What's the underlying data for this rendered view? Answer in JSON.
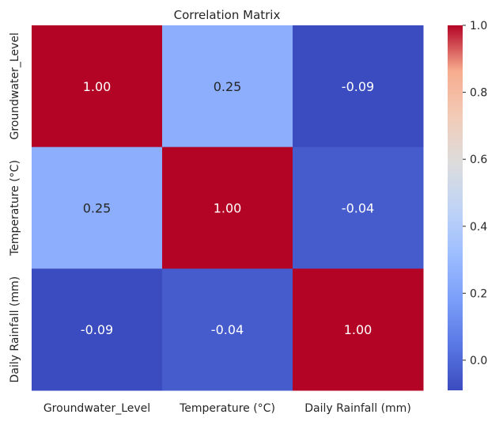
{
  "chart_data": {
    "type": "heatmap",
    "title": "Correlation Matrix",
    "x_categories": [
      "Groundwater_Level",
      "Temperature (°C)",
      "Daily Rainfall (mm)"
    ],
    "y_categories": [
      "Groundwater_Level",
      "Temperature (°C)",
      "Daily Rainfall (mm)"
    ],
    "values": [
      [
        1.0,
        0.25,
        -0.09
      ],
      [
        0.25,
        1.0,
        -0.04
      ],
      [
        -0.09,
        -0.04,
        1.0
      ]
    ],
    "value_labels": [
      [
        "1.00",
        "0.25",
        "-0.09"
      ],
      [
        "0.25",
        "1.00",
        "-0.04"
      ],
      [
        "-0.09",
        "-0.04",
        "1.00"
      ]
    ],
    "colormap": "coolwarm",
    "colorbar": {
      "vmin": -0.09,
      "vmax": 1.0,
      "ticks": [
        0.0,
        0.2,
        0.4,
        0.6,
        0.8,
        1.0
      ],
      "tick_labels": [
        "0.0",
        "0.2",
        "0.4",
        "0.6",
        "0.8",
        "1.0"
      ]
    },
    "grid": false,
    "legend": "colorbar-right"
  }
}
